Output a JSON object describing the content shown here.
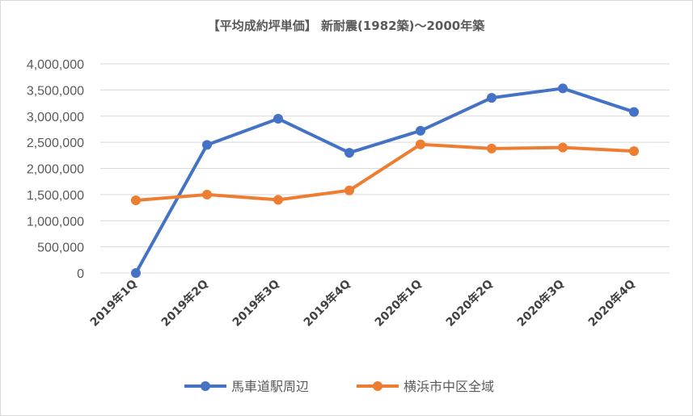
{
  "chart_data": {
    "type": "line",
    "title": "【平均成約坪単価】 新耐震(1982築)～2000年築",
    "categories": [
      "2019年1Q",
      "2019年2Q",
      "2019年3Q",
      "2019年4Q",
      "2020年1Q",
      "2020年2Q",
      "2020年3Q",
      "2020年4Q"
    ],
    "ylim": [
      0,
      4000000
    ],
    "yticks": [
      "0",
      "500,000",
      "1,000,000",
      "1,500,000",
      "2,000,000",
      "2,500,000",
      "3,000,000",
      "3,500,000",
      "4,000,000"
    ],
    "grid": true,
    "legend_position": "bottom",
    "series": [
      {
        "name": "馬車道駅周辺",
        "color": "#4472C4",
        "values": [
          0,
          2450000,
          2950000,
          2300000,
          2720000,
          3350000,
          3530000,
          3080000
        ]
      },
      {
        "name": "横浜市中区全域",
        "color": "#ED7D31",
        "values": [
          1390000,
          1500000,
          1400000,
          1580000,
          2460000,
          2380000,
          2400000,
          2330000
        ]
      }
    ]
  }
}
